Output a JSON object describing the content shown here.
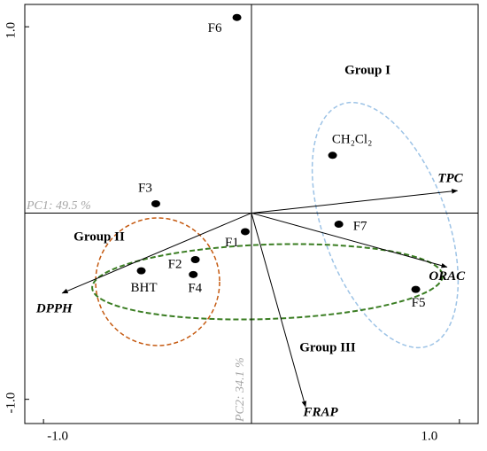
{
  "chart_data": {
    "type": "biplot",
    "xlabel": "PC1: 49.5 %",
    "ylabel": "PC2: 34.1 %",
    "xlim": [
      -1.09,
      1.09
    ],
    "ylim": [
      -1.13,
      1.12
    ],
    "xticks": [
      {
        "value": -1,
        "label": "-1.0"
      },
      {
        "value": 1,
        "label": "1.0"
      }
    ],
    "yticks": [
      {
        "value": -1,
        "label": "-1.0"
      },
      {
        "value": 1,
        "label": "1.0"
      }
    ],
    "points": {
      "labels": [
        "F6",
        "CH₂Cl₂",
        "F3",
        "F7",
        "F1",
        "F2",
        "BHT",
        "F4",
        "F5"
      ],
      "x": [
        -0.07,
        0.39,
        -0.46,
        0.42,
        -0.03,
        -0.27,
        -0.53,
        -0.28,
        0.79
      ],
      "y": [
        1.05,
        0.31,
        0.05,
        -0.06,
        -0.1,
        -0.25,
        -0.31,
        -0.33,
        -0.41
      ],
      "color": "#000000"
    },
    "loadings": {
      "labels": [
        "TPC",
        "ORAC",
        "DPPH",
        "FRAP"
      ],
      "x": [
        0.99,
        0.94,
        -0.91,
        0.26
      ],
      "y": [
        0.12,
        -0.29,
        -0.43,
        -1.04
      ],
      "color": "#000000"
    },
    "annotations": [
      "Group I",
      "Group II",
      "Group III"
    ]
  }
}
